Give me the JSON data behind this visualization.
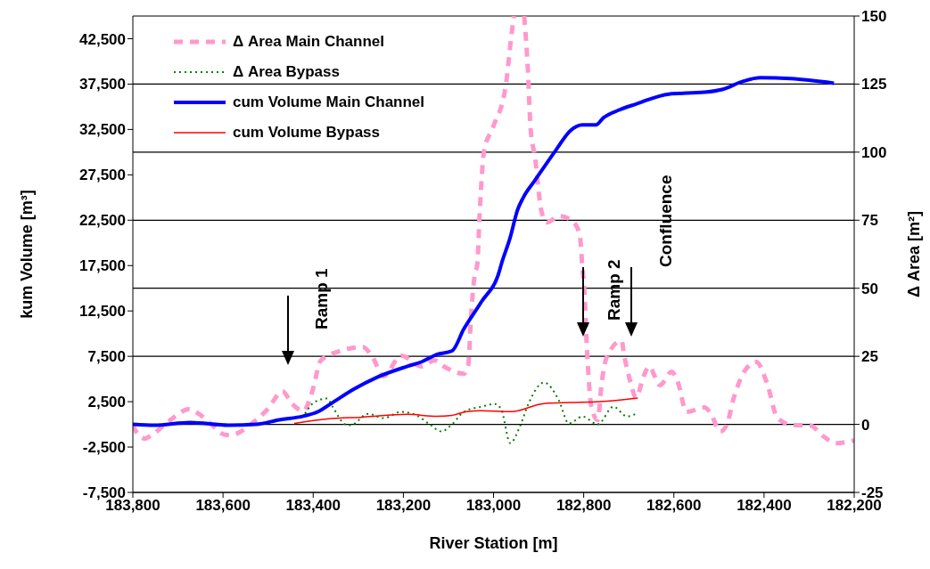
{
  "chart_data": {
    "type": "line",
    "xlabel": "River Station [m]",
    "ylabel": "kum Volume  [m³]",
    "y2label": "Δ Area  [m²]",
    "xlim": [
      183800,
      182200
    ],
    "xticks": [
      {
        "value": 183800,
        "label": "183,800"
      },
      {
        "value": 183600,
        "label": "183,600"
      },
      {
        "value": 183400,
        "label": "183,400"
      },
      {
        "value": 183200,
        "label": "183,200"
      },
      {
        "value": 183000,
        "label": "183,000"
      },
      {
        "value": 182800,
        "label": "182,800"
      },
      {
        "value": 182600,
        "label": "182,600"
      },
      {
        "value": 182400,
        "label": "182,400"
      },
      {
        "value": 182200,
        "label": "182,200"
      }
    ],
    "ylim": [
      -7500,
      45000
    ],
    "yticks": [
      {
        "value": -7500,
        "label": "-7,500"
      },
      {
        "value": -2500,
        "label": "-2,500"
      },
      {
        "value": 2500,
        "label": "2,500"
      },
      {
        "value": 7500,
        "label": "7,500"
      },
      {
        "value": 12500,
        "label": "12,500"
      },
      {
        "value": 17500,
        "label": "17,500"
      },
      {
        "value": 22500,
        "label": "22,500"
      },
      {
        "value": 27500,
        "label": "27,500"
      },
      {
        "value": 32500,
        "label": "32,500"
      },
      {
        "value": 37500,
        "label": "37,500"
      },
      {
        "value": 42500,
        "label": "42,500"
      }
    ],
    "y2lim": [
      -25,
      150
    ],
    "y2ticks": [
      -25,
      0,
      25,
      50,
      75,
      100,
      125,
      150
    ],
    "grid": "y",
    "legend": "top left",
    "marker": "none",
    "annotations": [
      "Ramp 1",
      "Ramp 2",
      "Confluence"
    ],
    "series": [
      {
        "name": "Δ Area Main Channel",
        "color": "#ff99cc",
        "axis": "y2",
        "line_style": "dashed",
        "x": [
          183800,
          183792,
          183774,
          183758,
          183719,
          183675,
          183654,
          183626,
          183594,
          183574,
          183541,
          183501,
          183468,
          183448,
          183422,
          183402,
          183383,
          183343,
          183290,
          183270,
          183244,
          183205,
          183159,
          183131,
          183106,
          183066,
          183056,
          183050,
          183042,
          183036,
          183031,
          183021,
          183001,
          182973,
          182961,
          182955,
          182944,
          182932,
          182924,
          182918,
          182908,
          182894,
          182882,
          182853,
          182829,
          182809,
          182803,
          182799,
          182793,
          182783,
          182769,
          182760,
          182750,
          182716,
          182710,
          182696,
          182684,
          182667,
          182655,
          182631,
          182605,
          182591,
          182572,
          182532,
          182518,
          182497,
          182483,
          182467,
          182443,
          182417,
          182394,
          182370,
          182334,
          182299,
          182269,
          182241,
          182200
        ],
        "values": [
          -0.3,
          -2.9,
          -5.2,
          -3.9,
          1.3,
          5.6,
          3.9,
          0,
          -3.9,
          -3.6,
          -0.3,
          5.6,
          12.1,
          7.8,
          4.9,
          12.1,
          23.5,
          26.8,
          28.4,
          25.2,
          17.7,
          25.2,
          21.3,
          23.5,
          20.9,
          18.6,
          21.9,
          39.2,
          54.6,
          58.9,
          76.5,
          100.4,
          109.2,
          124.3,
          141.9,
          150,
          null,
          150,
          130.8,
          109.2,
          98.1,
          78.5,
          74.2,
          76.5,
          75.2,
          70,
          57.9,
          50.4,
          28.4,
          6.5,
          1.6,
          15.4,
          24.2,
          30.7,
          25.2,
          15.4,
          9.8,
          17.7,
          21.3,
          14.4,
          19.3,
          15.4,
          4.6,
          6.2,
          3.9,
          -2.6,
          -0.3,
          9.8,
          19.6,
          22.9,
          15.4,
          2.3,
          -0.3,
          -0.3,
          -4.3,
          -6.9,
          -5.9
        ]
      },
      {
        "name": "Δ Area Bypass",
        "color": "#008000",
        "axis": "y2",
        "line_style": "dotted",
        "x": [
          183418,
          183397,
          183369,
          183357,
          183329,
          183317,
          183278,
          183244,
          183205,
          183171,
          183139,
          183116,
          183092,
          183066,
          183027,
          182997,
          182983,
          182963,
          182942,
          182922,
          182888,
          182855,
          182833,
          182803,
          182769,
          182734,
          182704,
          182680
        ],
        "values": [
          3.9,
          8.2,
          9.5,
          6.5,
          0,
          -0.3,
          3.9,
          2.3,
          4.6,
          3.3,
          -0.3,
          -2.6,
          0,
          4.6,
          6.5,
          7.5,
          5.6,
          -6.9,
          -1,
          7.8,
          15.4,
          8.8,
          0.3,
          2.9,
          0,
          6.5,
          2.9,
          4.3
        ]
      },
      {
        "name": "cum Volume Main Channel",
        "color": "#0000ff",
        "axis": "y",
        "line_style": "solid",
        "x": [
          183800,
          183753,
          183673,
          183586,
          183527,
          183475,
          183422,
          183389,
          183357,
          183309,
          183258,
          183191,
          183159,
          183126,
          183092,
          183066,
          183027,
          182987,
          182983,
          182963,
          182947,
          182934,
          182908,
          182862,
          182829,
          182803,
          182773,
          182756,
          182724,
          182684,
          182611,
          182532,
          182493,
          182447,
          182408,
          182340,
          182245
        ],
        "values": [
          0,
          -100,
          200,
          -100,
          0,
          500,
          900,
          1400,
          2400,
          3900,
          5200,
          6400,
          6900,
          7700,
          8100,
          10500,
          13500,
          16900,
          17600,
          20600,
          23600,
          25000,
          26900,
          30200,
          32400,
          33000,
          33000,
          33800,
          34600,
          35300,
          36400,
          36600,
          36900,
          37800,
          38200,
          38100,
          37600
        ]
      },
      {
        "name": "cum Volume Bypass",
        "color": "#ff0000",
        "axis": "y",
        "line_style": "solid",
        "x": [
          183442,
          183369,
          183290,
          183191,
          183126,
          183092,
          183060,
          183027,
          182961,
          182888,
          182829,
          182764,
          182680
        ],
        "values": [
          100,
          600,
          800,
          1100,
          900,
          1000,
          1400,
          1500,
          1400,
          2300,
          2400,
          2500,
          2900
        ]
      }
    ]
  }
}
